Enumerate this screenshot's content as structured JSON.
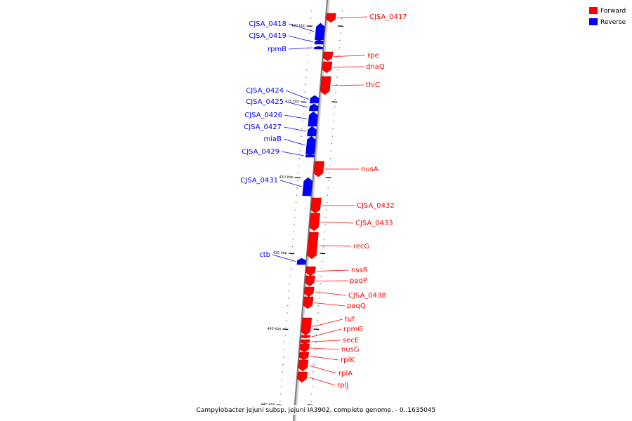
{
  "legend": [
    {
      "label": "Forward",
      "color": "#ff0000"
    },
    {
      "label": "Reverse",
      "color": "#0000ff"
    }
  ],
  "caption": "Campylobacter jejuni subsp. jejuni IA3902, complete genome. - 0..1635045",
  "genes": [
    {
      "name": "CJSA_0417",
      "strand": "forward"
    },
    {
      "name": "CJSA_0418",
      "strand": "reverse"
    },
    {
      "name": "CJSA_0419",
      "strand": "reverse"
    },
    {
      "name": "rpmB",
      "strand": "reverse"
    },
    {
      "name": "rpe",
      "strand": "forward"
    },
    {
      "name": "dnaQ",
      "strand": "forward"
    },
    {
      "name": "thiC",
      "strand": "forward"
    },
    {
      "name": "CJSA_0424",
      "strand": "reverse"
    },
    {
      "name": "CJSA_0425",
      "strand": "reverse"
    },
    {
      "name": "CJSA_0426",
      "strand": "reverse"
    },
    {
      "name": "CJSA_0427",
      "strand": "reverse"
    },
    {
      "name": "miaB",
      "strand": "reverse"
    },
    {
      "name": "CJSA_0429",
      "strand": "reverse"
    },
    {
      "name": "nusA",
      "strand": "forward"
    },
    {
      "name": "CJSA_0431",
      "strand": "reverse"
    },
    {
      "name": "CJSA_0432",
      "strand": "forward"
    },
    {
      "name": "CJSA_0433",
      "strand": "forward"
    },
    {
      "name": "recG",
      "strand": "forward"
    },
    {
      "name": "ctb",
      "strand": "reverse"
    },
    {
      "name": "nssR",
      "strand": "forward"
    },
    {
      "name": "paqP",
      "strand": "forward"
    },
    {
      "name": "CJSA_0438",
      "strand": "forward"
    },
    {
      "name": "paqQ",
      "strand": "forward"
    },
    {
      "name": "tuf",
      "strand": "forward"
    },
    {
      "name": "rpmG",
      "strand": "forward"
    },
    {
      "name": "secE",
      "strand": "forward"
    },
    {
      "name": "nusG",
      "strand": "forward"
    },
    {
      "name": "rplK",
      "strand": "forward"
    },
    {
      "name": "rplA",
      "strand": "forward"
    },
    {
      "name": "rplJ",
      "strand": "forward"
    }
  ],
  "ticks": [
    "420 kbp",
    "425 kbp",
    "430 kbp",
    "435 kbp",
    "440 kbp",
    "445 kbp"
  ]
}
